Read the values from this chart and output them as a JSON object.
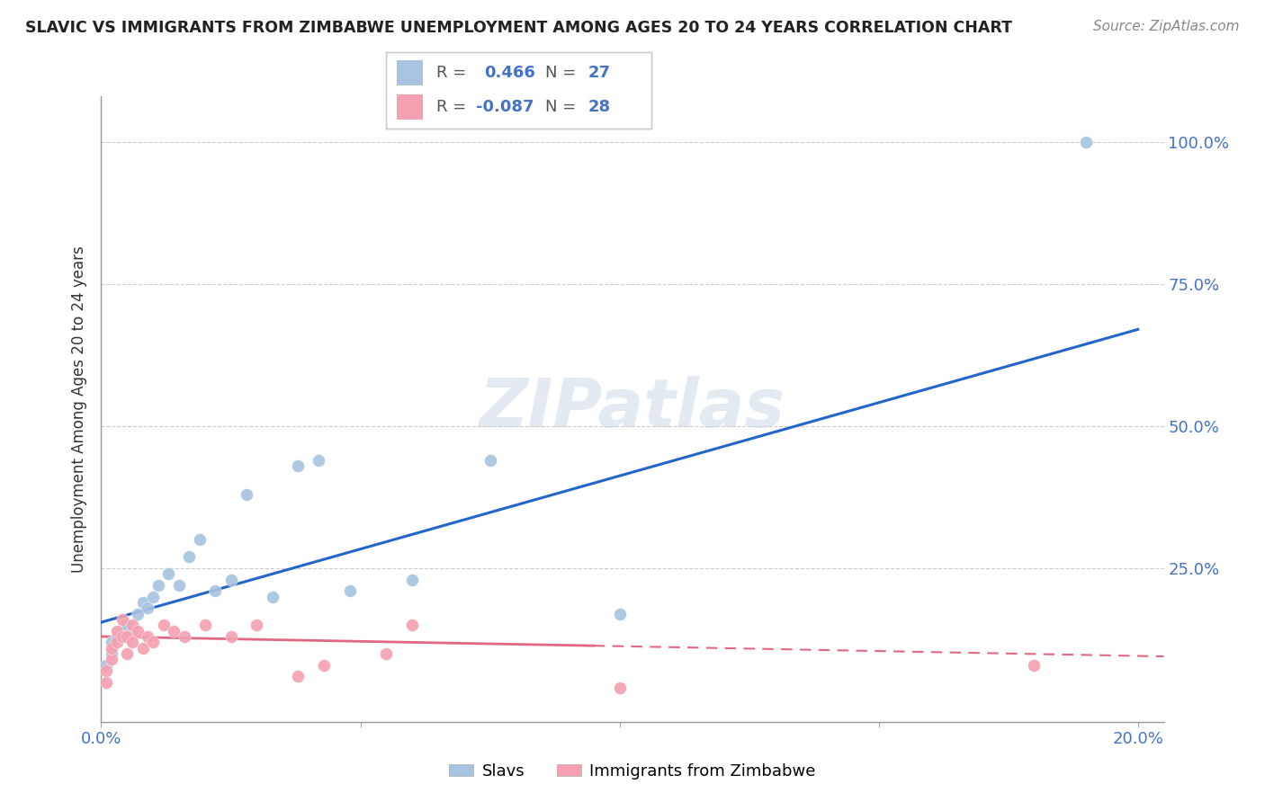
{
  "title": "SLAVIC VS IMMIGRANTS FROM ZIMBABWE UNEMPLOYMENT AMONG AGES 20 TO 24 YEARS CORRELATION CHART",
  "source": "Source: ZipAtlas.com",
  "ylabel": "Unemployment Among Ages 20 to 24 years",
  "xlim": [
    0.0,
    0.205
  ],
  "ylim": [
    -0.02,
    1.08
  ],
  "R_slavs": 0.466,
  "N_slavs": 27,
  "R_zimb": -0.087,
  "N_zimb": 28,
  "slavs_color": "#a8c4e0",
  "zimb_color": "#f4a0b0",
  "line_slavs_color": "#2266cc",
  "line_zimb_color": "#e06880",
  "background_color": "#ffffff",
  "slavs_x": [
    0.001,
    0.002,
    0.002,
    0.003,
    0.004,
    0.005,
    0.006,
    0.007,
    0.008,
    0.009,
    0.01,
    0.011,
    0.013,
    0.015,
    0.017,
    0.019,
    0.022,
    0.025,
    0.028,
    0.033,
    0.038,
    0.042,
    0.048,
    0.06,
    0.075,
    0.1,
    0.19
  ],
  "slavs_y": [
    0.08,
    0.1,
    0.12,
    0.13,
    0.14,
    0.15,
    0.14,
    0.17,
    0.19,
    0.18,
    0.2,
    0.22,
    0.24,
    0.22,
    0.27,
    0.3,
    0.21,
    0.23,
    0.38,
    0.2,
    0.43,
    0.44,
    0.21,
    0.23,
    0.44,
    0.17,
    1.0
  ],
  "zimb_x": [
    0.001,
    0.001,
    0.002,
    0.002,
    0.003,
    0.003,
    0.004,
    0.004,
    0.005,
    0.005,
    0.006,
    0.006,
    0.007,
    0.008,
    0.009,
    0.01,
    0.012,
    0.014,
    0.016,
    0.02,
    0.025,
    0.03,
    0.038,
    0.043,
    0.055,
    0.06,
    0.1,
    0.18
  ],
  "zimb_y": [
    0.05,
    0.07,
    0.09,
    0.11,
    0.12,
    0.14,
    0.13,
    0.16,
    0.1,
    0.13,
    0.12,
    0.15,
    0.14,
    0.11,
    0.13,
    0.12,
    0.15,
    0.14,
    0.13,
    0.15,
    0.13,
    0.15,
    0.06,
    0.08,
    0.1,
    0.15,
    0.04,
    0.08
  ],
  "line_slavs_x0": 0.0,
  "line_slavs_x1": 0.2,
  "line_slavs_y0": 0.155,
  "line_slavs_y1": 0.67,
  "line_zimb_x0": 0.0,
  "line_zimb_x1_solid": 0.095,
  "line_zimb_x1_dash": 0.205,
  "line_zimb_y0": 0.13,
  "line_zimb_y1": 0.095
}
